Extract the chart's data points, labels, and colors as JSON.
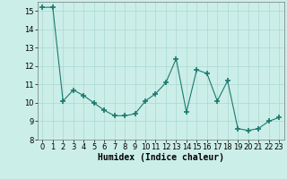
{
  "x": [
    0,
    1,
    2,
    3,
    4,
    5,
    6,
    7,
    8,
    9,
    10,
    11,
    12,
    13,
    14,
    15,
    16,
    17,
    18,
    19,
    20,
    21,
    22,
    23
  ],
  "y": [
    15.2,
    15.2,
    10.1,
    10.7,
    10.4,
    10.0,
    9.6,
    9.3,
    9.3,
    9.4,
    10.1,
    10.5,
    11.1,
    12.4,
    9.5,
    11.8,
    11.6,
    10.1,
    11.2,
    8.6,
    8.5,
    8.6,
    9.0,
    9.2
  ],
  "xlabel": "Humidex (Indice chaleur)",
  "xlim": [
    -0.5,
    23.5
  ],
  "ylim": [
    8,
    15.5
  ],
  "yticks": [
    8,
    9,
    10,
    11,
    12,
    13,
    14,
    15
  ],
  "xticks": [
    0,
    1,
    2,
    3,
    4,
    5,
    6,
    7,
    8,
    9,
    10,
    11,
    12,
    13,
    14,
    15,
    16,
    17,
    18,
    19,
    20,
    21,
    22,
    23
  ],
  "line_color": "#1a7a6e",
  "marker": "+",
  "marker_size": 4.0,
  "bg_color": "#cceee8",
  "grid_color": "#aad8d2",
  "label_fontsize": 7.0,
  "tick_fontsize": 6.0
}
